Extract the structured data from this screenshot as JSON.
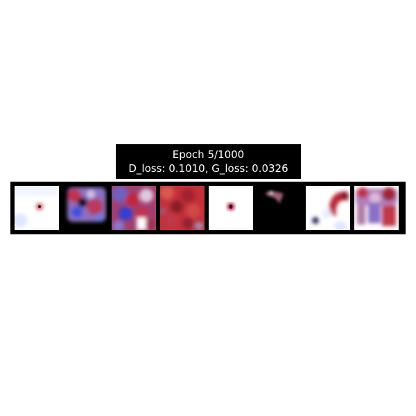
{
  "title": {
    "line1": "Epoch 5/1000",
    "line2": "D_loss: 0.1010, G_loss: 0.0326"
  },
  "samples": [
    {
      "name": "sample-1",
      "base": "#ffffff"
    },
    {
      "name": "sample-2",
      "base": "#000000"
    },
    {
      "name": "sample-3",
      "base": "#b83a5a"
    },
    {
      "name": "sample-4",
      "base": "#c0303a"
    },
    {
      "name": "sample-5",
      "base": "#ffffff"
    },
    {
      "name": "sample-6",
      "base": "#000000"
    },
    {
      "name": "sample-7",
      "base": "#ffffff"
    },
    {
      "name": "sample-8",
      "base": "#ffffff"
    }
  ]
}
